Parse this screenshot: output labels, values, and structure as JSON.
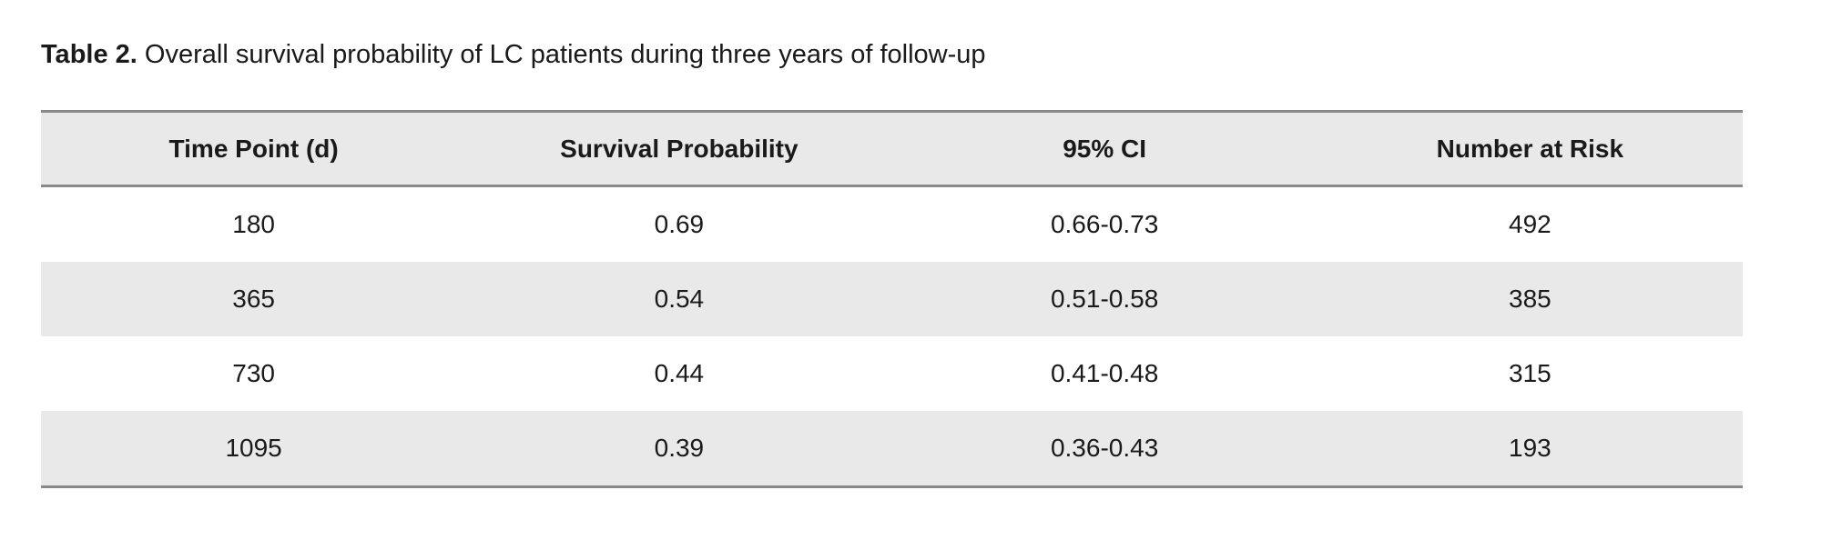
{
  "caption": {
    "label": "Table 2.",
    "text": "Overall survival probability of LC patients during three years of follow-up"
  },
  "table": {
    "headers": [
      "Time Point (d)",
      "Survival Probability",
      "95% CI",
      "Number at Risk"
    ],
    "rows": [
      [
        "180",
        "0.69",
        "0.66-0.73",
        "492"
      ],
      [
        "365",
        "0.54",
        "0.51-0.58",
        "385"
      ],
      [
        "730",
        "0.44",
        "0.41-0.48",
        "315"
      ],
      [
        "1095",
        "0.39",
        "0.36-0.43",
        "193"
      ]
    ]
  },
  "colors": {
    "header_bg": "#e9e9e9",
    "stripe_bg": "#e9e9e9",
    "rule": "#8a8a8a",
    "text": "#1a1a1a",
    "page_bg": "#ffffff"
  }
}
